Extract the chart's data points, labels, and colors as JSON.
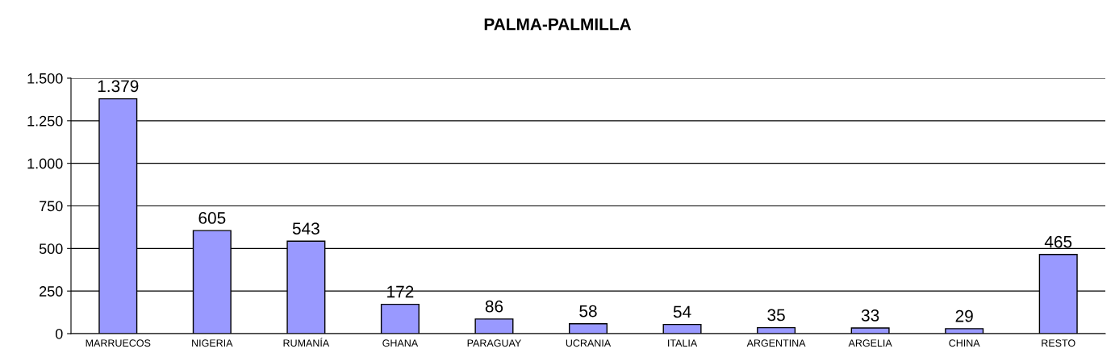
{
  "chart_data": {
    "type": "bar",
    "title": "PALMA-PALMILLA",
    "categories": [
      "MARRUECOS",
      "NIGERIA",
      "RUMANÍA",
      "GHANA",
      "PARAGUAY",
      "UCRANIA",
      "ITALIA",
      "ARGENTINA",
      "ARGELIA",
      "CHINA",
      "RESTO"
    ],
    "values": [
      1379,
      605,
      543,
      172,
      86,
      58,
      54,
      35,
      33,
      29,
      465
    ],
    "value_labels": [
      "1.379",
      "605",
      "543",
      "172",
      "86",
      "58",
      "54",
      "35",
      "33",
      "29",
      "465"
    ],
    "color": "#9999ff",
    "ylim": [
      0,
      1500
    ],
    "yticks": [
      0,
      250,
      500,
      750,
      {
        "value": 1000,
        "label": "1.000"
      },
      {
        "value": 1250,
        "label": "1.250"
      },
      {
        "value": 1500,
        "label": "1.500"
      }
    ],
    "grid": "y"
  }
}
